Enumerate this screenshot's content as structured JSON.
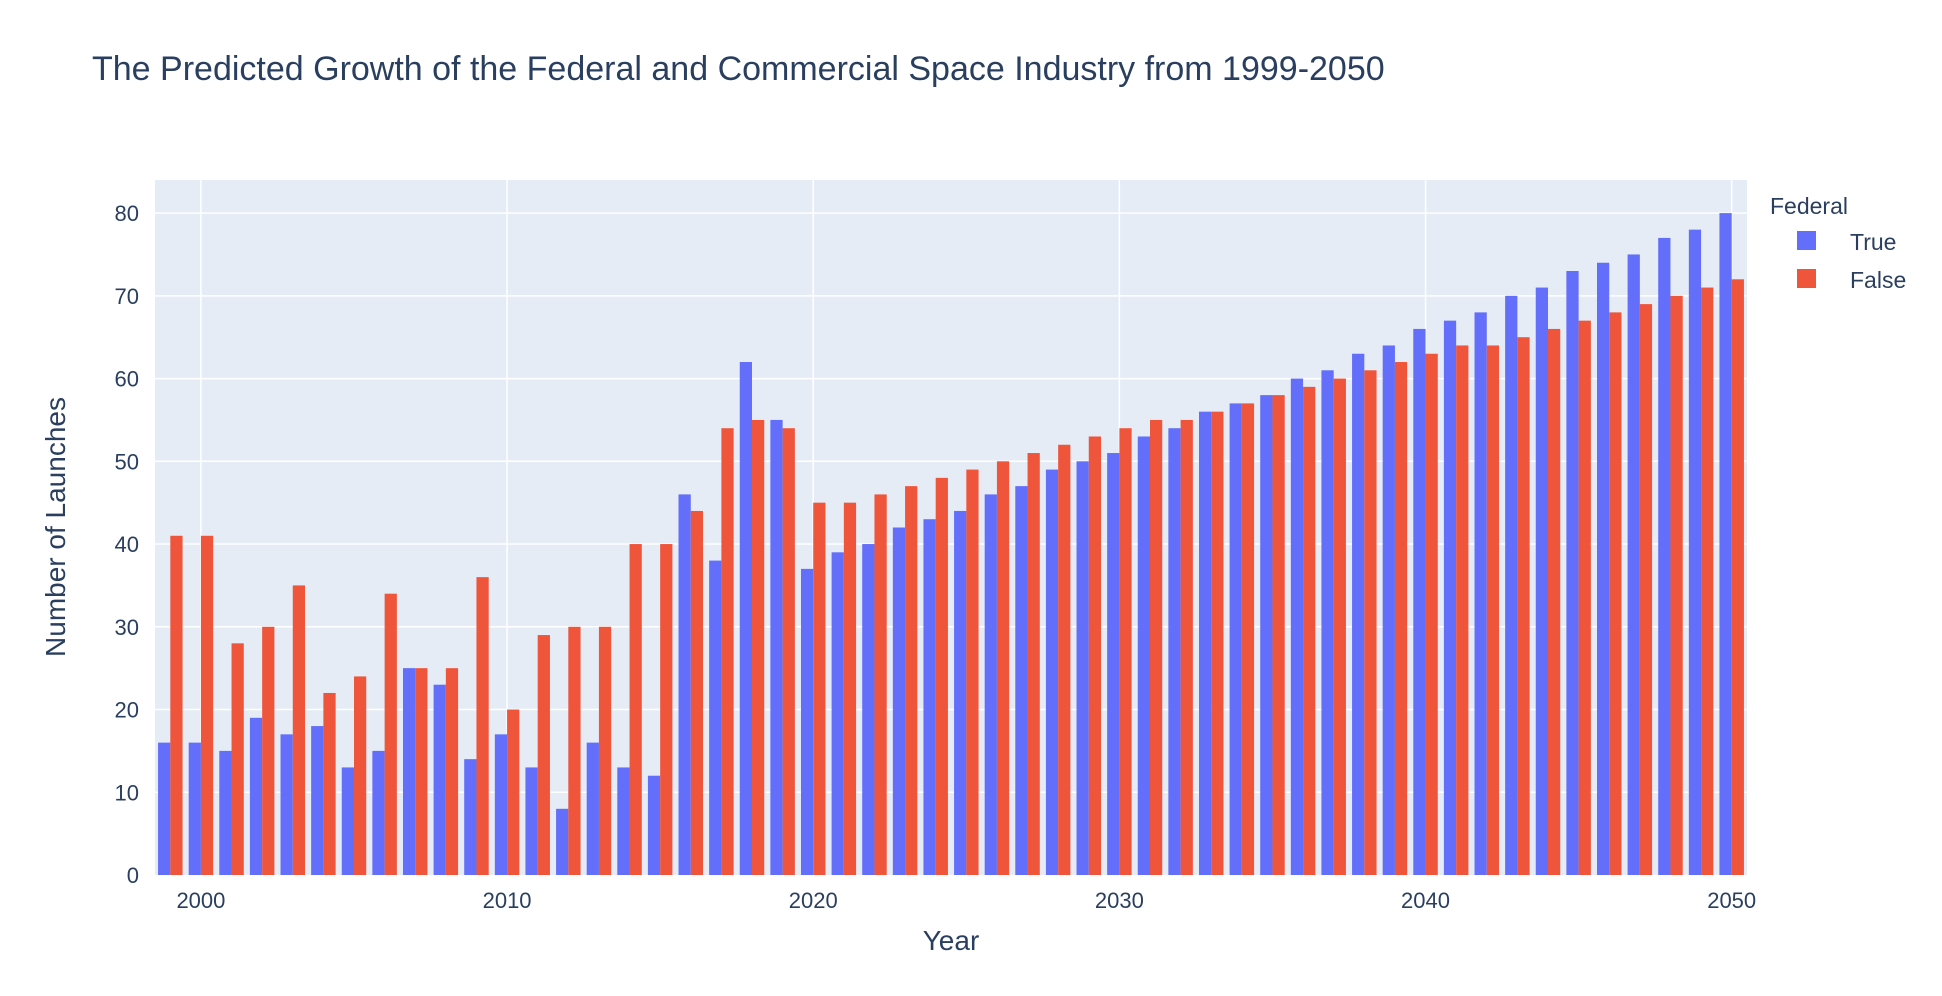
{
  "chart_data": {
    "type": "bar",
    "title": "The Predicted Growth of the Federal and Commercial Space Industry from 1999-2050",
    "xlabel": "Year",
    "ylabel": "Number of Launches",
    "legend_title": "Federal",
    "legend_position": "top-right",
    "grid": true,
    "xlim": [
      1998.5,
      2050.5
    ],
    "ylim": [
      0,
      84
    ],
    "x_ticks": [
      2000,
      2010,
      2020,
      2030,
      2040,
      2050
    ],
    "y_ticks": [
      0,
      10,
      20,
      30,
      40,
      50,
      60,
      70,
      80
    ],
    "categories": [
      1999,
      2000,
      2001,
      2002,
      2003,
      2004,
      2005,
      2006,
      2007,
      2008,
      2009,
      2010,
      2011,
      2012,
      2013,
      2014,
      2015,
      2016,
      2017,
      2018,
      2019,
      2020,
      2021,
      2022,
      2023,
      2024,
      2025,
      2026,
      2027,
      2028,
      2029,
      2030,
      2031,
      2032,
      2033,
      2034,
      2035,
      2036,
      2037,
      2038,
      2039,
      2040,
      2041,
      2042,
      2043,
      2044,
      2045,
      2046,
      2047,
      2048,
      2049,
      2050
    ],
    "series": [
      {
        "name": "True",
        "color": "#636efa",
        "values": [
          16,
          16,
          15,
          19,
          17,
          18,
          13,
          15,
          25,
          23,
          14,
          17,
          13,
          8,
          16,
          13,
          12,
          46,
          38,
          62,
          55,
          37,
          39,
          40,
          42,
          43,
          44,
          46,
          47,
          49,
          50,
          51,
          53,
          54,
          56,
          57,
          58,
          60,
          61,
          63,
          64,
          66,
          67,
          68,
          70,
          71,
          73,
          74,
          75,
          77,
          78,
          80
        ]
      },
      {
        "name": "False",
        "color": "#ef553b",
        "values": [
          41,
          41,
          28,
          30,
          35,
          22,
          24,
          34,
          25,
          25,
          36,
          20,
          29,
          30,
          30,
          40,
          40,
          44,
          54,
          55,
          54,
          45,
          45,
          46,
          47,
          48,
          49,
          50,
          51,
          52,
          53,
          54,
          55,
          55,
          56,
          57,
          58,
          59,
          60,
          61,
          62,
          63,
          64,
          64,
          65,
          66,
          67,
          68,
          69,
          70,
          71,
          72
        ]
      }
    ],
    "colors": {
      "plot_background": "#e5ecf6",
      "grid": "#ffffff",
      "text": "#2a3f5f"
    }
  }
}
